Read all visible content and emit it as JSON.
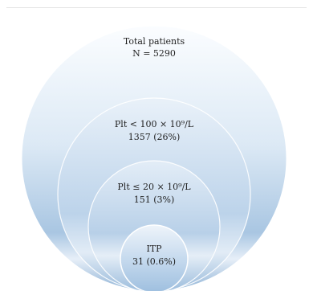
{
  "diagram": {
    "colors": {
      "outer_top": "#f4f8fc",
      "outer_bottom": "#8fb3d6",
      "mid": "#c9dcef",
      "inner": "#bcd3ea",
      "core_top": "#dfeaf5",
      "core_bottom": "#9ebfdf",
      "ring": "#ffffff"
    },
    "circles": [
      {
        "id": "total",
        "line1": "Total patients",
        "line2": "N = 5290"
      },
      {
        "id": "plt100",
        "line1": "Plt < 100 × 10⁹/L",
        "line2": "1357 (26%)"
      },
      {
        "id": "plt20",
        "line1": "Plt ≤ 20 × 10⁹/L",
        "line2": "151 (3%)"
      },
      {
        "id": "itp",
        "line1": "ITP",
        "line2": "31 (0.6%)"
      }
    ]
  }
}
